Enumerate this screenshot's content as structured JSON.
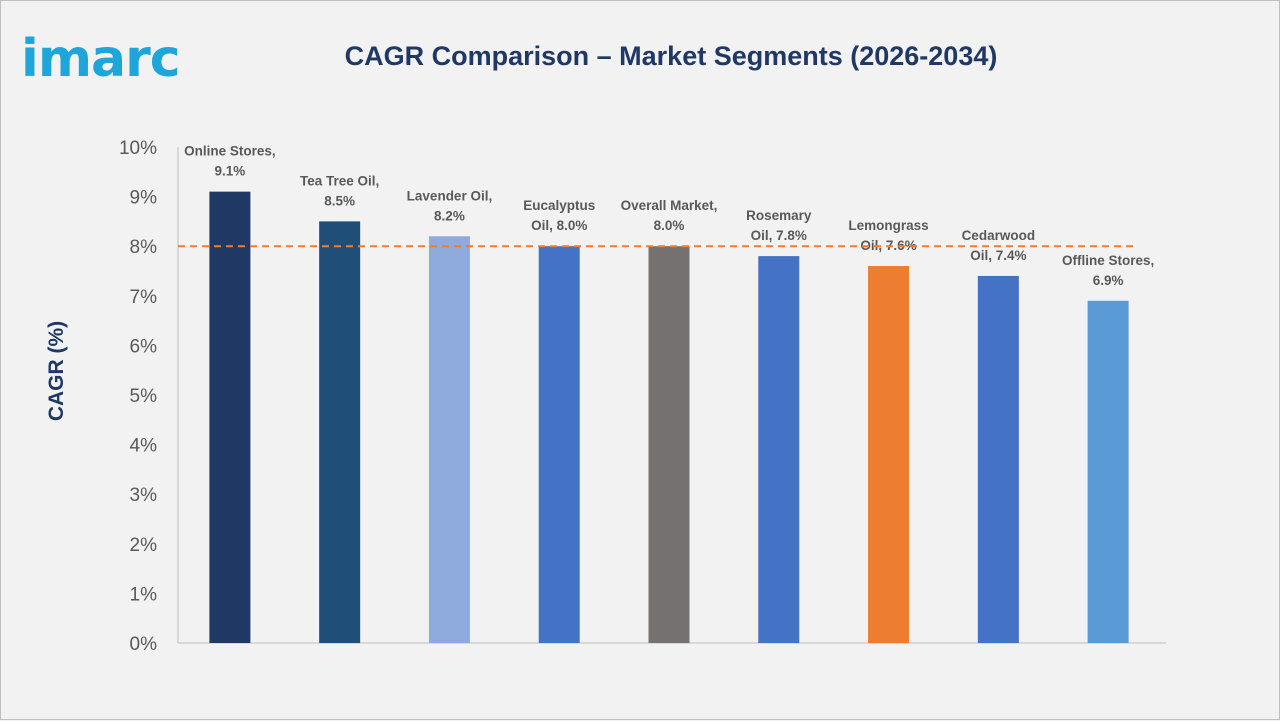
{
  "brand": {
    "logo_text": "imarc",
    "logo_color": "#1ea5d9"
  },
  "chart_data": {
    "type": "bar",
    "title": "CAGR Comparison – Market Segments (2026-2034)",
    "xlabel": "",
    "ylabel": "CAGR (%)",
    "ylim": [
      0,
      10
    ],
    "yticks": [
      "0%",
      "1%",
      "2%",
      "3%",
      "4%",
      "5%",
      "6%",
      "7%",
      "8%",
      "9%",
      "10%"
    ],
    "grid": false,
    "reference_line": {
      "value": 8.0,
      "style": "dashed",
      "color": "#ed7d31"
    },
    "bars": [
      {
        "category": "Online Stores",
        "value": 9.1,
        "label": [
          "Online Stores,",
          "9.1%"
        ],
        "color": "#1f3864"
      },
      {
        "category": "Tea Tree Oil",
        "value": 8.5,
        "label": [
          "Tea Tree Oil,",
          "8.5%"
        ],
        "color": "#1f4e79"
      },
      {
        "category": "Lavender Oil",
        "value": 8.2,
        "label": [
          "Lavender Oil,",
          "8.2%"
        ],
        "color": "#8faadc"
      },
      {
        "category": "Eucalyptus Oil",
        "value": 8.0,
        "label": [
          "Eucalyptus",
          "Oil, 8.0%"
        ],
        "color": "#4472c4"
      },
      {
        "category": "Overall Market",
        "value": 8.0,
        "label": [
          "Overall Market,",
          "8.0%"
        ],
        "color": "#767171"
      },
      {
        "category": "Rosemary Oil",
        "value": 7.8,
        "label": [
          "Rosemary",
          "Oil, 7.8%"
        ],
        "color": "#4472c4"
      },
      {
        "category": "Lemongrass Oil",
        "value": 7.6,
        "label": [
          "Lemongrass",
          "Oil, 7.6%"
        ],
        "color": "#ed7d31"
      },
      {
        "category": "Cedarwood Oil",
        "value": 7.4,
        "label": [
          "Cedarwood",
          "Oil, 7.4%"
        ],
        "color": "#4472c4"
      },
      {
        "category": "Offline Stores",
        "value": 6.9,
        "label": [
          "Offline Stores,",
          "6.9%"
        ],
        "color": "#5b9bd5"
      }
    ]
  }
}
